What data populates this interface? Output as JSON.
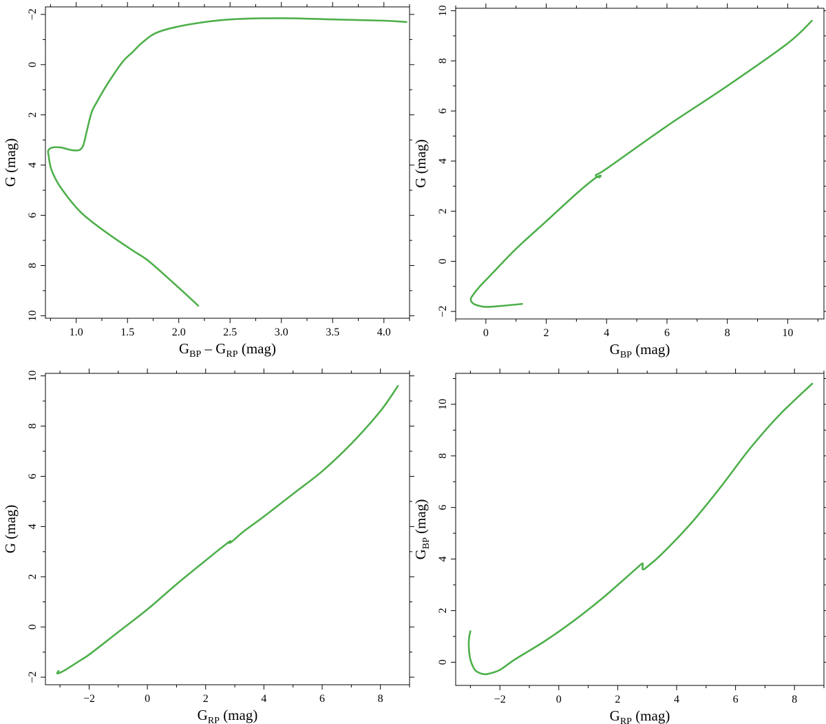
{
  "colors": {
    "curve": "#4daf4a",
    "axes": "#000000",
    "background": "#ffffff"
  },
  "chart_data": [
    {
      "type": "line",
      "xlabel": {
        "main": "G",
        "sub1": "BP",
        "mid": " – G",
        "sub2": "RP",
        "unit": " (mag)"
      },
      "ylabel": {
        "main": "G",
        "sub": "",
        "unit": " (mag)"
      },
      "xlim": [
        0.7,
        4.25
      ],
      "ylim": [
        10.1,
        -2.3
      ],
      "y_inverted": true,
      "x_ticks": [
        "1.0",
        "1.5",
        "2.0",
        "2.5",
        "3.0",
        "3.5",
        "4.0"
      ],
      "x_tick_values": [
        1.0,
        1.5,
        2.0,
        2.5,
        3.0,
        3.5,
        4.0
      ],
      "y_ticks": [
        "−2",
        "0",
        "2",
        "4",
        "6",
        "8",
        "10"
      ],
      "y_tick_values": [
        -2,
        0,
        2,
        4,
        6,
        8,
        10
      ],
      "series": [
        {
          "x": [
            2.19,
            1.95,
            1.7,
            1.55,
            1.3,
            1.05,
            0.85,
            0.76,
            0.73,
            0.73,
            0.77,
            0.85,
            0.95,
            1.03,
            1.07,
            1.1,
            1.15,
            1.2,
            1.3,
            1.45,
            1.55,
            1.65,
            1.8,
            2.1,
            2.5,
            3.0,
            3.5,
            4.0,
            4.22
          ],
          "y": [
            9.6,
            8.7,
            7.8,
            7.4,
            6.7,
            5.9,
            4.9,
            4.2,
            3.6,
            3.4,
            3.3,
            3.3,
            3.4,
            3.4,
            3.2,
            2.7,
            1.9,
            1.5,
            0.8,
            -0.1,
            -0.5,
            -0.9,
            -1.3,
            -1.6,
            -1.8,
            -1.85,
            -1.8,
            -1.75,
            -1.7
          ]
        }
      ]
    },
    {
      "type": "line",
      "xlabel": {
        "main": "G",
        "sub1": "BP",
        "mid": "",
        "sub2": "",
        "unit": " (mag)"
      },
      "ylabel": {
        "main": "G",
        "sub": "",
        "unit": " (mag)"
      },
      "xlim": [
        -1.0,
        11.2
      ],
      "ylim": [
        -2.3,
        10.1
      ],
      "y_inverted": false,
      "x_ticks": [
        "0",
        "2",
        "4",
        "6",
        "8",
        "10"
      ],
      "x_tick_values": [
        0,
        2,
        4,
        6,
        8,
        10
      ],
      "y_ticks": [
        "−2",
        "0",
        "2",
        "4",
        "6",
        "8",
        "10"
      ],
      "y_tick_values": [
        -2,
        0,
        2,
        4,
        6,
        8,
        10
      ],
      "series": [
        {
          "x": [
            1.2,
            0.5,
            0.0,
            -0.3,
            -0.45,
            -0.5,
            -0.4,
            -0.2,
            0.2,
            1.0,
            2.0,
            3.0,
            3.6,
            3.8,
            3.75,
            3.65,
            4.0,
            6.0,
            8.0,
            10.0,
            10.8
          ],
          "y": [
            -1.7,
            -1.78,
            -1.82,
            -1.75,
            -1.65,
            -1.5,
            -1.3,
            -1.0,
            -0.5,
            0.5,
            1.6,
            2.7,
            3.3,
            3.42,
            3.35,
            3.45,
            3.7,
            5.4,
            7.0,
            8.7,
            9.6
          ]
        }
      ]
    },
    {
      "type": "line",
      "xlabel": {
        "main": "G",
        "sub1": "RP",
        "mid": "",
        "sub2": "",
        "unit": " (mag)"
      },
      "ylabel": {
        "main": "G",
        "sub": "",
        "unit": " (mag)"
      },
      "xlim": [
        -3.5,
        9.0
      ],
      "ylim": [
        -2.3,
        10.1
      ],
      "y_inverted": false,
      "x_ticks": [
        "−2",
        "0",
        "2",
        "4",
        "6",
        "8"
      ],
      "x_tick_values": [
        -2,
        0,
        2,
        4,
        6,
        8
      ],
      "y_ticks": [
        "−2",
        "0",
        "2",
        "4",
        "6",
        "8",
        "10"
      ],
      "y_tick_values": [
        -2,
        0,
        2,
        4,
        6,
        8,
        10
      ],
      "series": [
        {
          "x": [
            -3.05,
            -3.1,
            -3.0,
            -2.8,
            -2.4,
            -2.0,
            -1.0,
            0.0,
            1.0,
            2.0,
            2.7,
            2.85,
            2.8,
            2.9,
            3.3,
            4.0,
            5.0,
            6.0,
            7.0,
            8.0,
            8.6
          ],
          "y": [
            -1.75,
            -1.85,
            -1.82,
            -1.7,
            -1.4,
            -1.1,
            -0.2,
            0.7,
            1.7,
            2.65,
            3.3,
            3.42,
            3.35,
            3.4,
            3.8,
            4.4,
            5.3,
            6.2,
            7.3,
            8.6,
            9.6
          ]
        }
      ]
    },
    {
      "type": "line",
      "xlabel": {
        "main": "G",
        "sub1": "RP",
        "mid": "",
        "sub2": "",
        "unit": " (mag)"
      },
      "ylabel": {
        "main": "G",
        "sub": "BP",
        "unit": " (mag)"
      },
      "xlim": [
        -3.5,
        9.0
      ],
      "ylim": [
        -0.9,
        11.2
      ],
      "y_inverted": false,
      "x_ticks": [
        "−2",
        "0",
        "2",
        "4",
        "6",
        "8"
      ],
      "x_tick_values": [
        -2,
        0,
        2,
        4,
        6,
        8
      ],
      "y_ticks": [
        "0",
        "2",
        "4",
        "6",
        "8",
        "10"
      ],
      "y_tick_values": [
        0,
        2,
        4,
        6,
        8,
        10
      ],
      "series": [
        {
          "x": [
            -3.0,
            -3.05,
            -3.05,
            -3.0,
            -2.9,
            -2.8,
            -2.6,
            -2.4,
            -2.0,
            -1.5,
            -0.5,
            0.5,
            1.5,
            2.5,
            2.8,
            2.85,
            2.85,
            3.0,
            3.5,
            4.5,
            5.5,
            6.5,
            7.5,
            8.6
          ],
          "y": [
            1.2,
            0.9,
            0.5,
            0.1,
            -0.2,
            -0.35,
            -0.45,
            -0.45,
            -0.3,
            0.1,
            0.8,
            1.6,
            2.5,
            3.5,
            3.8,
            3.8,
            3.6,
            3.7,
            4.2,
            5.4,
            6.8,
            8.3,
            9.6,
            10.8
          ]
        }
      ]
    }
  ]
}
